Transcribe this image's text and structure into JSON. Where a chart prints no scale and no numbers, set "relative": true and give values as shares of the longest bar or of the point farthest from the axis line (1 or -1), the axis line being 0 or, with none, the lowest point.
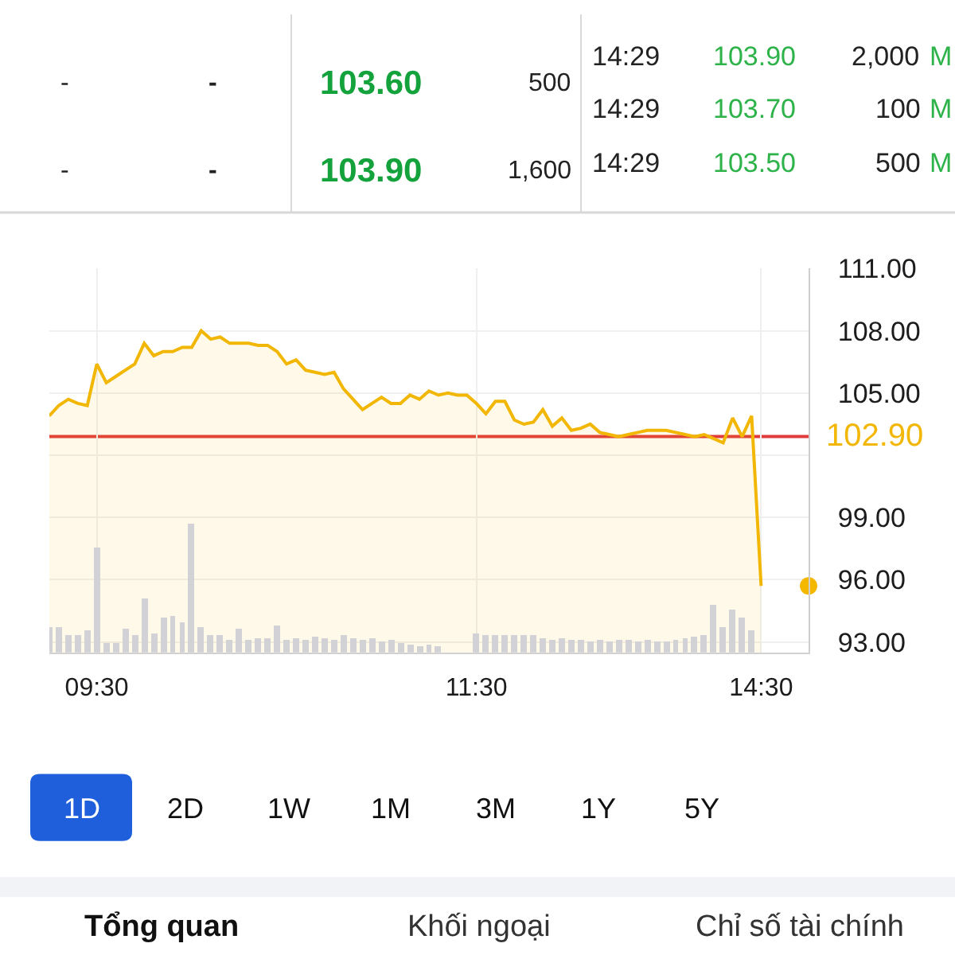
{
  "chart_data": [
    {
      "type": "other",
      "annotations": [
        "-",
        "-",
        "103.60",
        "500",
        "-",
        "-",
        "103.90",
        "1,600",
        "14:29",
        "103.90",
        "2,000",
        "M",
        "14:29",
        "103.70",
        "100",
        "M",
        "14:29",
        "103.50",
        "500",
        "M"
      ],
      "colors": [
        "#222222",
        "#222222",
        "#13a23b",
        "#222222",
        "#222222",
        "#222222",
        "#13a23b",
        "#222222",
        "#222222",
        "#2db34a",
        "#222222",
        "#2db34a",
        "#222222",
        "#2db34a",
        "#222222",
        "#2db34a",
        "#222222",
        "#2db34a",
        "#222222",
        "#2db34a"
      ]
    },
    {
      "type": "area",
      "categories": [
        null,
        null,
        null,
        null,
        null,
        "09:30",
        null,
        null,
        null,
        null,
        null,
        null,
        null,
        null,
        null,
        null,
        null,
        null,
        null,
        null,
        null,
        null,
        null,
        null,
        null,
        null,
        null,
        null,
        null,
        null,
        null,
        null,
        null,
        null,
        null,
        null,
        null,
        null,
        null,
        null,
        null,
        null,
        null,
        null,
        null,
        "11:30",
        null,
        null,
        null,
        null,
        null,
        null,
        null,
        null,
        null,
        null,
        null,
        null,
        null,
        null,
        null,
        null,
        null,
        null,
        null,
        null,
        null,
        null,
        null,
        null,
        null,
        null,
        null,
        null,
        null,
        "14:30",
        null,
        null,
        null,
        null,
        null
      ],
      "series": [
        {
          "color": "#f2b705",
          "values": [
            103.9,
            104.4,
            104.7,
            104.5,
            104.4,
            106.4,
            105.5,
            105.8,
            106.1,
            106.4,
            107.4,
            106.8,
            107.0,
            107.0,
            107.2,
            107.2,
            108.0,
            107.6,
            107.7,
            107.4,
            107.4,
            107.4,
            107.3,
            107.3,
            107.0,
            106.4,
            106.6,
            106.1,
            106.0,
            105.9,
            106.0,
            105.2,
            104.7,
            104.2,
            104.5,
            104.8,
            104.5,
            104.5,
            104.9,
            104.7,
            105.1,
            104.9,
            105.0,
            104.9,
            104.9,
            104.5,
            104.0,
            104.6,
            104.6,
            103.7,
            103.5,
            103.6,
            104.2,
            103.4,
            103.8,
            103.2,
            103.3,
            103.5,
            103.1,
            103.0,
            102.9,
            103.0,
            103.1,
            103.2,
            103.2,
            103.2,
            103.1,
            103.0,
            102.9,
            103.0,
            102.8,
            102.6,
            103.8,
            102.9,
            103.9,
            95.7,
            null,
            null,
            null,
            null,
            null
          ]
        },
        {
          "type": "scatter",
          "color": "#f5b800",
          "values": [
            null,
            null,
            null,
            null,
            null,
            null,
            null,
            null,
            null,
            null,
            null,
            null,
            null,
            null,
            null,
            null,
            null,
            null,
            null,
            null,
            null,
            null,
            null,
            null,
            null,
            null,
            null,
            null,
            null,
            null,
            null,
            null,
            null,
            null,
            null,
            null,
            null,
            null,
            null,
            null,
            null,
            null,
            null,
            null,
            null,
            null,
            null,
            null,
            null,
            null,
            null,
            null,
            null,
            null,
            null,
            null,
            null,
            null,
            null,
            null,
            null,
            null,
            null,
            null,
            null,
            null,
            null,
            null,
            null,
            null,
            null,
            null,
            null,
            null,
            null,
            null,
            null,
            null,
            null,
            null,
            95.7
          ]
        }
      ],
      "ylim": [
        92.5,
        111
      ],
      "yticks": [
        {
          "value": 93,
          "label": "93.00"
        },
        {
          "value": 96,
          "label": "96.00"
        },
        {
          "value": 99,
          "label": "99.00"
        },
        {
          "value": 102,
          "label": null
        },
        {
          "value": 105,
          "label": "105.00"
        },
        {
          "value": 108,
          "label": "108.00"
        },
        {
          "value": 111,
          "label": "111.00"
        }
      ],
      "grid": true,
      "ref_lines": [
        {
          "axis": "y",
          "value": 102.9,
          "label": "102.90",
          "color": "#e03a3a"
        }
      ]
    },
    {
      "type": "bar",
      "relative": true,
      "color": "#d2d2d6",
      "categories": [
        null,
        null,
        null,
        null,
        null,
        null,
        null,
        null,
        null,
        null,
        null,
        null,
        null,
        null,
        null,
        null,
        null,
        null,
        null,
        null,
        null,
        null,
        null,
        null,
        null,
        null,
        null,
        null,
        null,
        null,
        null,
        null,
        null,
        null,
        null,
        null,
        null,
        null,
        null,
        null,
        null,
        null,
        null,
        null,
        null,
        null,
        null,
        null,
        null,
        null,
        null,
        null,
        null,
        null,
        null,
        null,
        null,
        null,
        null,
        null,
        null,
        null,
        null,
        null,
        null,
        null,
        null,
        null,
        null,
        null,
        null,
        null,
        null,
        null,
        null,
        null,
        null,
        null,
        null,
        null,
        null
      ],
      "values": [
        0.2,
        0.2,
        0.13,
        0.13,
        0.17,
        0.82,
        0.08,
        0.07,
        0.19,
        0.13,
        0.42,
        0.15,
        0.27,
        0.29,
        0.23,
        1.0,
        0.2,
        0.13,
        0.13,
        0.1,
        0.19,
        0.1,
        0.11,
        0.11,
        0.21,
        0.1,
        0.11,
        0.1,
        0.12,
        0.11,
        0.1,
        0.13,
        0.11,
        0.1,
        0.11,
        0.09,
        0.1,
        0.07,
        0.06,
        0.05,
        0.06,
        0.05,
        null,
        null,
        null,
        0.15,
        0.14,
        0.13,
        0.14,
        0.13,
        0.14,
        0.13,
        0.11,
        0.1,
        0.11,
        0.1,
        0.1,
        0.09,
        0.1,
        0.09,
        0.1,
        0.1,
        0.09,
        0.1,
        0.09,
        0.09,
        0.1,
        0.11,
        0.12,
        0.14,
        0.37,
        0.2,
        0.33,
        0.27,
        0.17,
        null,
        null,
        null,
        null,
        null,
        null
      ]
    },
    {
      "type": "other",
      "categories": [
        "1D",
        "2D",
        "1W",
        "1M",
        "3M",
        "1Y",
        "5Y"
      ],
      "colors": [
        "#1f5fdc",
        null,
        null,
        null,
        null,
        null,
        null
      ],
      "annotations": [
        "Tổng quan",
        "Khối ngoại",
        "Chỉ số tài chính"
      ]
    }
  ]
}
